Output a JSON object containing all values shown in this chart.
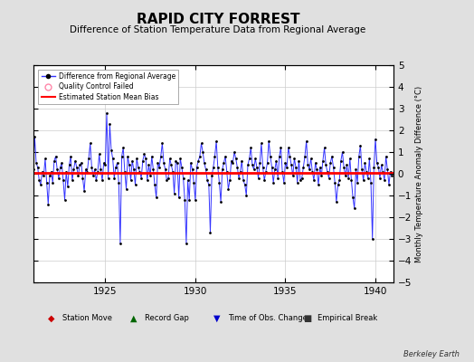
{
  "title": "RAPID CITY FORREST",
  "subtitle": "Difference of Station Temperature Data from Regional Average",
  "ylabel_right": "Monthly Temperature Anomaly Difference (°C)",
  "credit": "Berkeley Earth",
  "xlim": [
    1921.0,
    1941.0
  ],
  "ylim": [
    -5,
    5
  ],
  "yticks": [
    -5,
    -4,
    -3,
    -2,
    -1,
    0,
    1,
    2,
    3,
    4,
    5
  ],
  "xticks": [
    1925,
    1930,
    1935,
    1940
  ],
  "bias_value": 0.05,
  "background_color": "#e0e0e0",
  "plot_bg_color": "#ffffff",
  "line_color": "#3333ff",
  "bias_color": "#ff0000",
  "marker_color": "#000000",
  "title_fontsize": 11,
  "subtitle_fontsize": 7.5,
  "years": [
    1921.0,
    1921.0833,
    1921.1667,
    1921.25,
    1921.3333,
    1921.4167,
    1921.5,
    1921.5833,
    1921.6667,
    1921.75,
    1921.8333,
    1921.9167,
    1922.0,
    1922.0833,
    1922.1667,
    1922.25,
    1922.3333,
    1922.4167,
    1922.5,
    1922.5833,
    1922.6667,
    1922.75,
    1922.8333,
    1922.9167,
    1923.0,
    1923.0833,
    1923.1667,
    1923.25,
    1923.3333,
    1923.4167,
    1923.5,
    1923.5833,
    1923.6667,
    1923.75,
    1923.8333,
    1923.9167,
    1924.0,
    1924.0833,
    1924.1667,
    1924.25,
    1924.3333,
    1924.4167,
    1924.5,
    1924.5833,
    1924.6667,
    1924.75,
    1924.8333,
    1924.9167,
    1925.0,
    1925.0833,
    1925.1667,
    1925.25,
    1925.3333,
    1925.4167,
    1925.5,
    1925.5833,
    1925.6667,
    1925.75,
    1925.8333,
    1925.9167,
    1926.0,
    1926.0833,
    1926.1667,
    1926.25,
    1926.3333,
    1926.4167,
    1926.5,
    1926.5833,
    1926.6667,
    1926.75,
    1926.8333,
    1926.9167,
    1927.0,
    1927.0833,
    1927.1667,
    1927.25,
    1927.3333,
    1927.4167,
    1927.5,
    1927.5833,
    1927.6667,
    1927.75,
    1927.8333,
    1927.9167,
    1928.0,
    1928.0833,
    1928.1667,
    1928.25,
    1928.3333,
    1928.4167,
    1928.5,
    1928.5833,
    1928.6667,
    1928.75,
    1928.8333,
    1928.9167,
    1929.0,
    1929.0833,
    1929.1667,
    1929.25,
    1929.3333,
    1929.4167,
    1929.5,
    1929.5833,
    1929.6667,
    1929.75,
    1929.8333,
    1929.9167,
    1930.0,
    1930.0833,
    1930.1667,
    1930.25,
    1930.3333,
    1930.4167,
    1930.5,
    1930.5833,
    1930.6667,
    1930.75,
    1930.8333,
    1930.9167,
    1931.0,
    1931.0833,
    1931.1667,
    1931.25,
    1931.3333,
    1931.4167,
    1931.5,
    1931.5833,
    1931.6667,
    1931.75,
    1931.8333,
    1931.9167,
    1932.0,
    1932.0833,
    1932.1667,
    1932.25,
    1932.3333,
    1932.4167,
    1932.5,
    1932.5833,
    1932.6667,
    1932.75,
    1932.8333,
    1932.9167,
    1933.0,
    1933.0833,
    1933.1667,
    1933.25,
    1933.3333,
    1933.4167,
    1933.5,
    1933.5833,
    1933.6667,
    1933.75,
    1933.8333,
    1933.9167,
    1934.0,
    1934.0833,
    1934.1667,
    1934.25,
    1934.3333,
    1934.4167,
    1934.5,
    1934.5833,
    1934.6667,
    1934.75,
    1934.8333,
    1934.9167,
    1935.0,
    1935.0833,
    1935.1667,
    1935.25,
    1935.3333,
    1935.4167,
    1935.5,
    1935.5833,
    1935.6667,
    1935.75,
    1935.8333,
    1935.9167,
    1936.0,
    1936.0833,
    1936.1667,
    1936.25,
    1936.3333,
    1936.4167,
    1936.5,
    1936.5833,
    1936.6667,
    1936.75,
    1936.8333,
    1936.9167,
    1937.0,
    1937.0833,
    1937.1667,
    1937.25,
    1937.3333,
    1937.4167,
    1937.5,
    1937.5833,
    1937.6667,
    1937.75,
    1937.8333,
    1937.9167,
    1938.0,
    1938.0833,
    1938.1667,
    1938.25,
    1938.3333,
    1938.4167,
    1938.5,
    1938.5833,
    1938.6667,
    1938.75,
    1938.8333,
    1938.9167,
    1939.0,
    1939.0833,
    1939.1667,
    1939.25,
    1939.3333,
    1939.4167,
    1939.5,
    1939.5833,
    1939.6667,
    1939.75,
    1939.8333,
    1939.9167,
    1940.0,
    1940.0833,
    1940.1667,
    1940.25,
    1940.3333,
    1940.4167,
    1940.5,
    1940.5833,
    1940.6667,
    1940.75,
    1940.8333,
    1940.9167
  ],
  "values": [
    0.2,
    1.7,
    0.5,
    0.3,
    -0.3,
    -0.5,
    0.1,
    -0.1,
    0.7,
    -0.4,
    -1.4,
    -0.1,
    0.1,
    -0.4,
    0.6,
    0.8,
    0.2,
    -0.2,
    0.3,
    0.5,
    -0.3,
    -1.2,
    0.1,
    -0.6,
    0.4,
    0.8,
    -0.3,
    0.2,
    0.6,
    0.3,
    -0.1,
    0.4,
    0.5,
    -0.2,
    -0.8,
    0.2,
    0.1,
    0.7,
    1.4,
    0.3,
    -0.1,
    0.2,
    -0.3,
    0.1,
    0.9,
    0.2,
    -0.3,
    0.5,
    0.4,
    2.8,
    -0.2,
    2.3,
    1.1,
    0.7,
    -0.2,
    0.3,
    0.5,
    -0.4,
    -3.2,
    0.8,
    1.2,
    0.1,
    -0.7,
    0.8,
    0.4,
    -0.3,
    0.6,
    0.2,
    -0.5,
    0.7,
    0.3,
    0.1,
    -0.2,
    0.6,
    0.9,
    0.7,
    -0.3,
    0.4,
    -0.1,
    0.8,
    0.2,
    -0.5,
    -1.1,
    0.5,
    0.3,
    0.8,
    1.4,
    0.5,
    0.2,
    -0.3,
    -0.2,
    0.7,
    0.4,
    0.1,
    -0.9,
    0.6,
    0.5,
    -1.1,
    0.7,
    0.3,
    -0.2,
    -1.2,
    -3.2,
    -0.3,
    -1.2,
    0.5,
    0.2,
    -0.4,
    -1.2,
    0.3,
    0.6,
    0.8,
    1.4,
    1.0,
    0.5,
    0.2,
    -0.3,
    -0.5,
    -2.7,
    -0.1,
    0.3,
    0.8,
    1.5,
    0.3,
    -0.4,
    -1.3,
    0.2,
    0.5,
    0.8,
    0.1,
    -0.7,
    -0.3,
    0.6,
    0.5,
    1.0,
    0.7,
    0.3,
    -0.2,
    0.1,
    0.6,
    -0.3,
    -0.5,
    -1.0,
    0.4,
    0.7,
    1.2,
    0.4,
    0.2,
    0.7,
    0.3,
    -0.2,
    0.5,
    1.4,
    0.3,
    -0.3,
    0.1,
    0.5,
    1.5,
    0.8,
    0.3,
    -0.4,
    0.2,
    0.6,
    -0.2,
    0.8,
    1.2,
    0.1,
    -0.4,
    0.5,
    0.3,
    1.2,
    0.8,
    0.4,
    -0.1,
    0.7,
    0.3,
    -0.4,
    0.6,
    -0.3,
    -0.2,
    0.3,
    0.8,
    1.5,
    0.4,
    0.2,
    0.7,
    0.1,
    -0.3,
    0.5,
    0.2,
    -0.5,
    0.3,
    -0.1,
    0.6,
    1.2,
    0.4,
    0.1,
    -0.2,
    0.5,
    0.8,
    0.3,
    -0.4,
    -1.3,
    -0.5,
    -0.3,
    0.6,
    1.0,
    0.3,
    -0.1,
    0.4,
    -0.2,
    0.7,
    -0.3,
    -1.1,
    -1.6,
    0.2,
    -0.4,
    0.8,
    1.3,
    0.2,
    -0.3,
    0.5,
    0.1,
    -0.2,
    0.7,
    -0.4,
    -3.0,
    0.3,
    1.6,
    0.5,
    0.3,
    -0.2,
    0.4,
    0.1,
    -0.3,
    0.8,
    0.2,
    -0.5,
    0.1,
    -0.1
  ]
}
